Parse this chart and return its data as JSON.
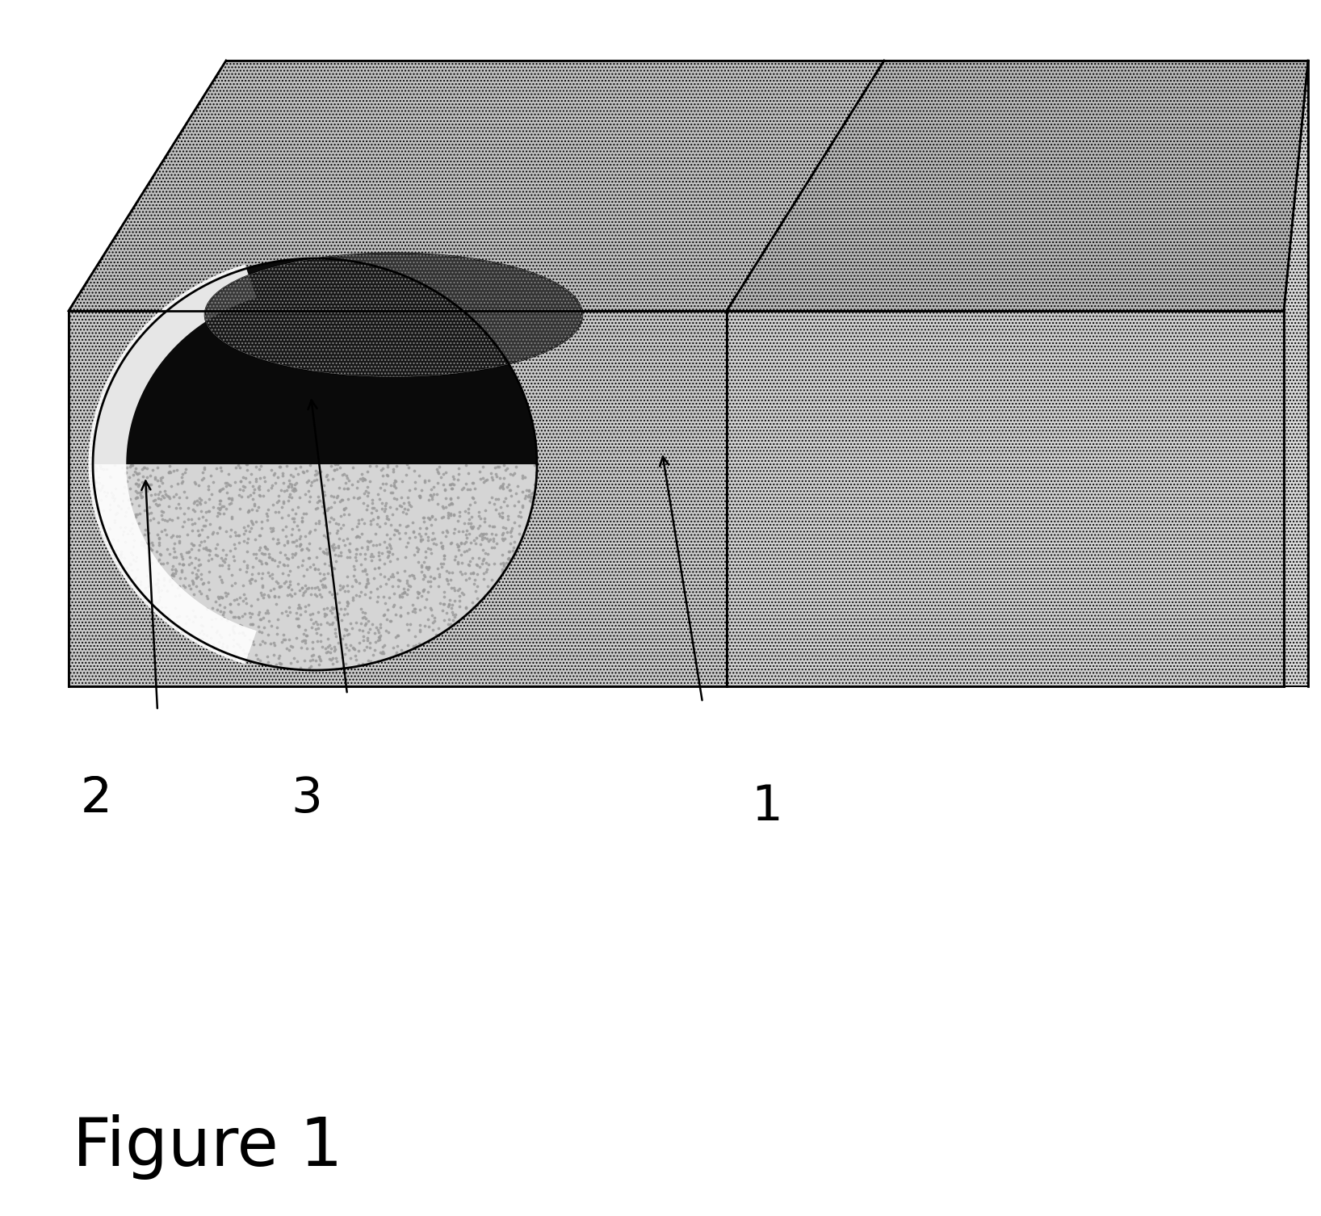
{
  "title": "Figure 1",
  "title_fontsize": 60,
  "background_color": "#ffffff",
  "label_fontsize": 44,
  "block_face_color": "#c8c8c8",
  "top_face_color": "#b8b8b8",
  "right_face_color": "#d2d2d2",
  "inner_wall_color": "#c0c0c0",
  "cavity_dark_color": "#151515",
  "cavity_mid_color": "#555555",
  "cavity_rim_color": "#d8d8d8",
  "hatch_pattern": ".....",
  "hatch_color": "#888888"
}
